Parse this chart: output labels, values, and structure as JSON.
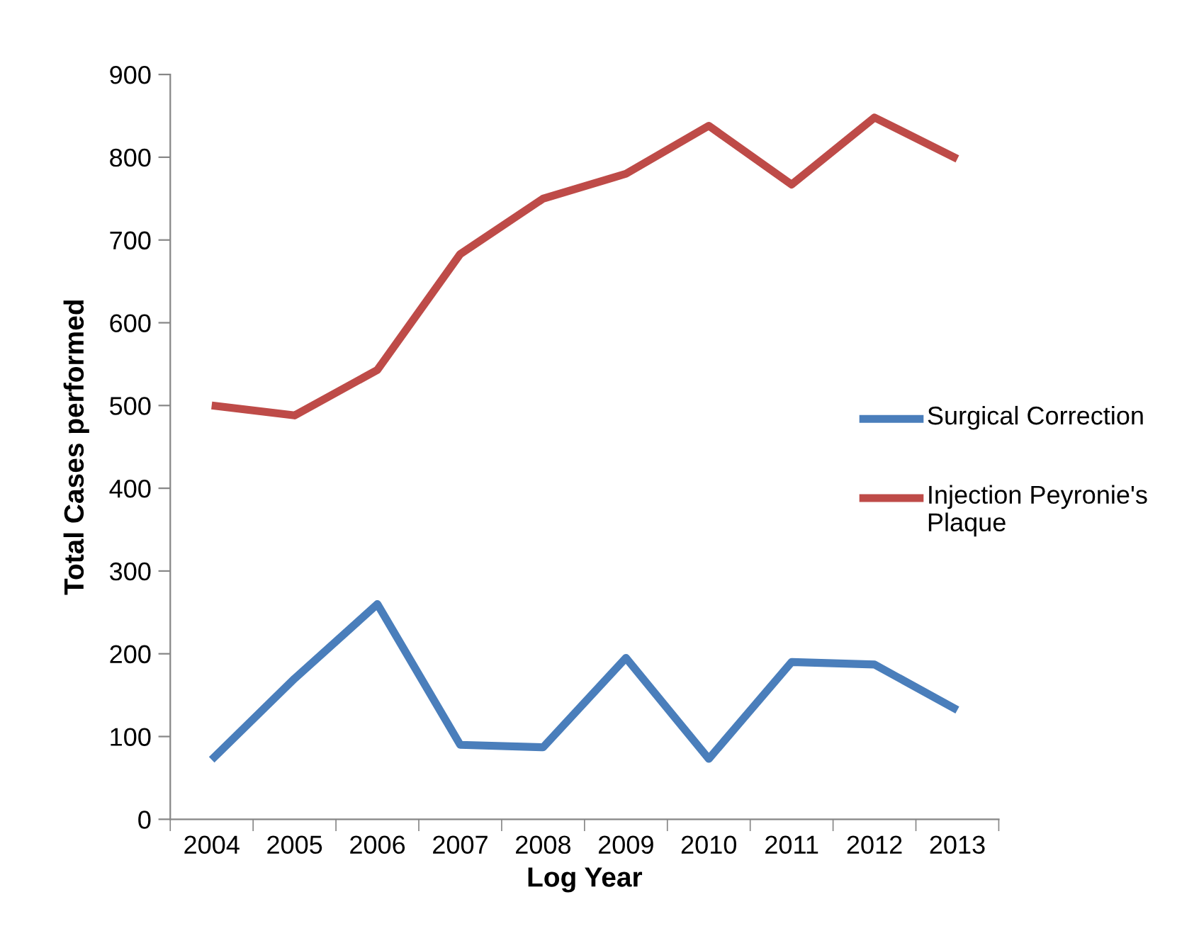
{
  "chart_data": {
    "type": "line",
    "xlabel": "Log Year",
    "ylabel": "Total Cases performed",
    "categories": [
      "2004",
      "2005",
      "2006",
      "2007",
      "2008",
      "2009",
      "2010",
      "2011",
      "2012",
      "2013"
    ],
    "series": [
      {
        "name": "Surgical Correction",
        "color": "#4a7ebb",
        "values": [
          72,
          170,
          260,
          90,
          87,
          195,
          73,
          190,
          187,
          132
        ]
      },
      {
        "name": "Injection Peyronie's Plaque",
        "color": "#be4b48",
        "values": [
          500,
          488,
          543,
          683,
          750,
          780,
          838,
          767,
          848,
          798
        ]
      }
    ],
    "ylim": [
      0,
      900
    ],
    "yticks": [
      0,
      100,
      200,
      300,
      400,
      500,
      600,
      700,
      800,
      900
    ],
    "grid": false,
    "legend": "right",
    "marker": "none",
    "line_style": "solid"
  }
}
